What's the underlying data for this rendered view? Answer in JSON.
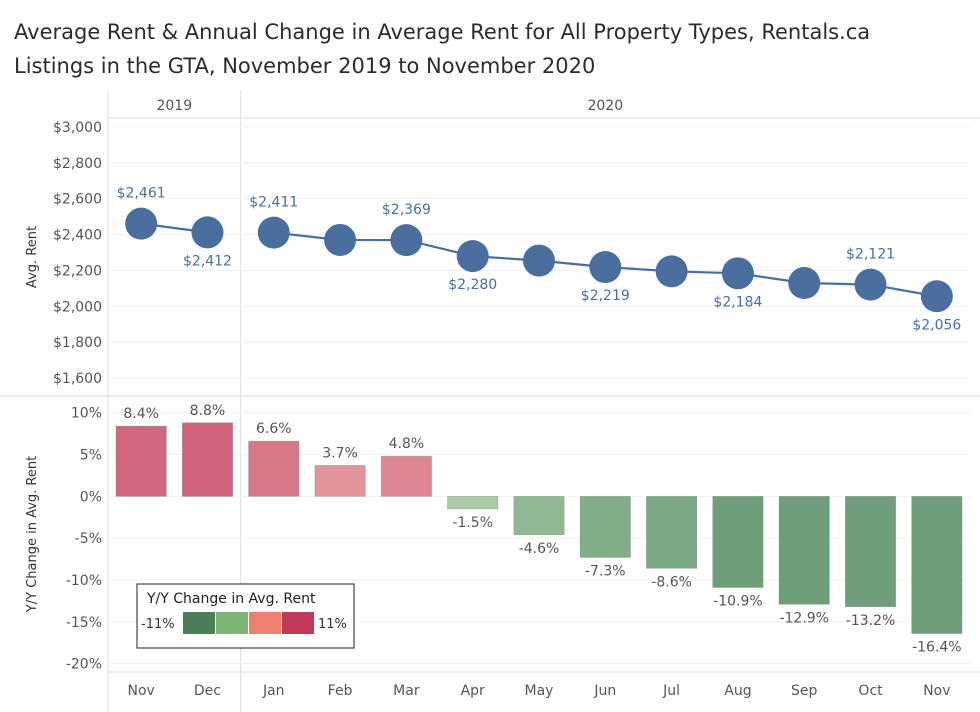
{
  "title_line1": "Average Rent & Annual Change in Average Rent for All Property Types, Rentals.ca",
  "title_line2": "Listings in the GTA, November 2019 to November 2020",
  "chart_data": {
    "type": "line",
    "year_groups": [
      {
        "label": "2019",
        "months": [
          "Nov",
          "Dec"
        ]
      },
      {
        "label": "2020",
        "months": [
          "Jan",
          "Feb",
          "Mar",
          "Apr",
          "May",
          "Jun",
          "Jul",
          "Aug",
          "Sep",
          "Oct",
          "Nov"
        ]
      }
    ],
    "categories": [
      "Nov",
      "Dec",
      "Jan",
      "Feb",
      "Mar",
      "Apr",
      "May",
      "Jun",
      "Jul",
      "Aug",
      "Sep",
      "Oct",
      "Nov"
    ],
    "rent": {
      "ylabel": "Avg. Rent",
      "ylim": [
        1500,
        3050
      ],
      "ticks": [
        1600,
        1800,
        2000,
        2200,
        2400,
        2600,
        2800,
        3000
      ],
      "tick_labels": [
        "$1,600",
        "$1,800",
        "$2,000",
        "$2,200",
        "$2,400",
        "$2,600",
        "$2,800",
        "$3,000"
      ],
      "values": [
        2461,
        2412,
        2411,
        2370,
        2369,
        2280,
        2255,
        2219,
        2195,
        2184,
        2130,
        2121,
        2056
      ],
      "labels": [
        "$2,461",
        "$2,412",
        "$2,411",
        "",
        "$2,369",
        "$2,280",
        "",
        "$2,219",
        "",
        "$2,184",
        "",
        "$2,121",
        "$2,056"
      ],
      "label_pos": [
        "above",
        "below",
        "above",
        "",
        "above",
        "below",
        "",
        "below",
        "",
        "below",
        "",
        "above",
        "below"
      ],
      "color": "#4a6f9e"
    },
    "change": {
      "type": "bar",
      "ylabel": "Y/Y Change in Avg. Rent",
      "ylim": [
        -21,
        12
      ],
      "ticks": [
        10,
        5,
        0,
        -5,
        -10,
        -15,
        -20
      ],
      "tick_labels": [
        "10%",
        "5%",
        "0%",
        "-5%",
        "-10%",
        "-15%",
        "-20%"
      ],
      "values": [
        8.4,
        8.8,
        6.6,
        3.7,
        4.8,
        -1.5,
        -4.6,
        -7.3,
        -8.6,
        -10.9,
        -12.9,
        -13.2,
        -16.4
      ],
      "labels": [
        "8.4%",
        "8.8%",
        "6.6%",
        "3.7%",
        "4.8%",
        "-1.5%",
        "-4.6%",
        "-7.3%",
        "-8.6%",
        "-10.9%",
        "-12.9%",
        "-13.2%",
        "-16.4%"
      ]
    },
    "legend": {
      "title": "Y/Y Change in Avg. Rent",
      "min_label": "-11%",
      "max_label": "11%",
      "colors": [
        "#4a7f58",
        "#7fb577",
        "#ef7f6f",
        "#c2395a"
      ],
      "placement": "bottom-left"
    }
  }
}
